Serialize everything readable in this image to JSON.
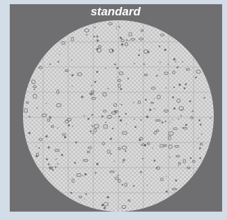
{
  "title": "standard"
}
